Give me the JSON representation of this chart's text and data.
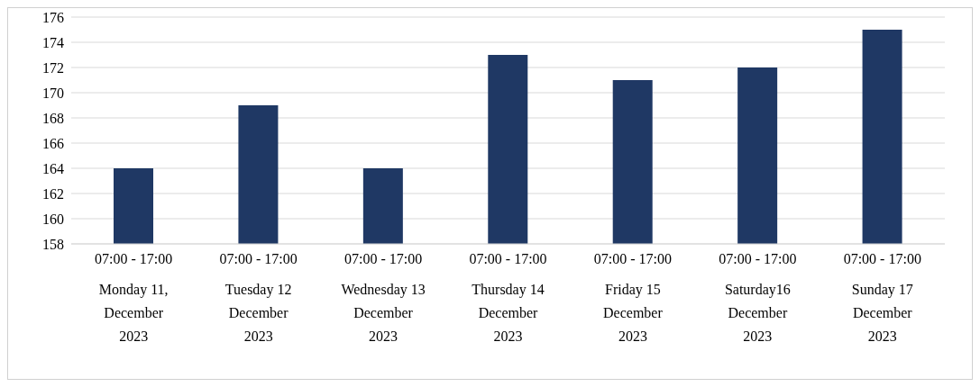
{
  "chart_data": {
    "type": "bar",
    "categories": [
      "07:00 - 17:00\nMonday 11,\nDecember\n2023",
      "07:00 - 17:00\nTuesday 12\nDecember\n2023",
      "07:00 - 17:00\nWednesday 13\nDecember\n2023",
      "07:00 - 17:00\nThursday 14\nDecember\n2023",
      "07:00 - 17:00\nFriday 15\nDecember\n2023",
      "07:00 - 17:00\nSaturday16\nDecember\n2023",
      "07:00 - 17:00\nSunday 17\nDecember\n2023"
    ],
    "values": [
      164,
      169,
      164,
      173,
      171,
      172,
      175
    ],
    "color": "#1f3864",
    "ylim": [
      158,
      176
    ],
    "yticks": [
      158,
      160,
      162,
      164,
      166,
      168,
      170,
      172,
      174,
      176
    ],
    "grid": "y",
    "legend": false
  }
}
